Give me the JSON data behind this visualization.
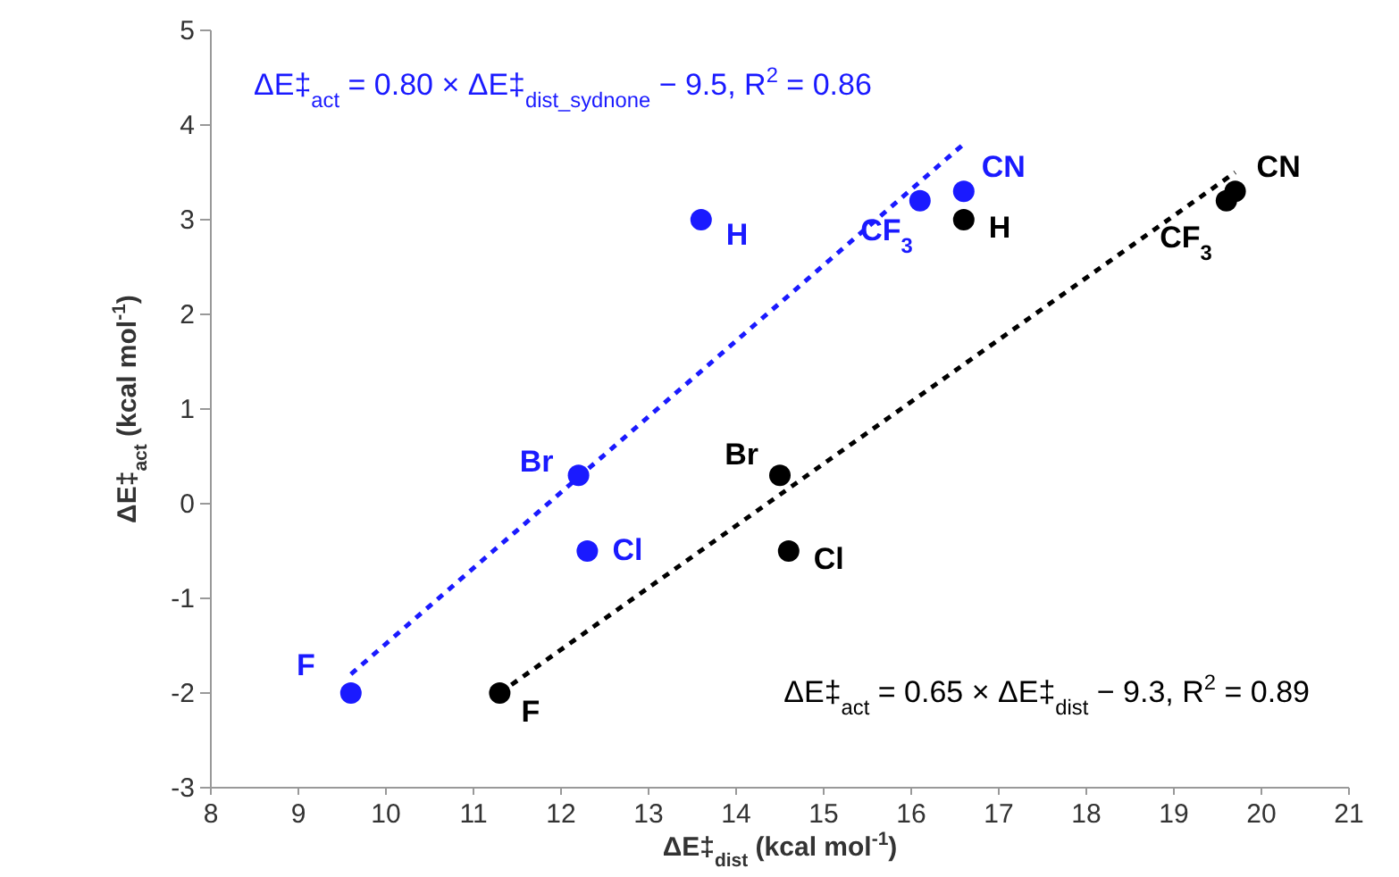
{
  "chart_data": {
    "type": "scatter",
    "xlabel": "ΔE‡$_{dist}$ (kcal mol$^{-1}$)",
    "ylabel": "ΔE‡$_{act}$ (kcal mol$^{-1}$)",
    "xlim": [
      8,
      21
    ],
    "xticks": [
      8,
      9,
      10,
      11,
      12,
      13,
      14,
      15,
      16,
      17,
      18,
      19,
      20,
      21
    ],
    "ylim": [
      -3,
      5
    ],
    "yticks": [
      -3,
      -2,
      -1,
      0,
      1,
      2,
      3,
      4,
      5
    ],
    "grid": false,
    "series": [
      {
        "color": "#1a1aff",
        "marker": "circle",
        "x": [
          9.6,
          12.2,
          12.3,
          13.6,
          16.1,
          16.6
        ],
        "values": [
          -2,
          0.3,
          -0.5,
          3.0,
          3.2,
          3.3
        ]
      },
      {
        "color": "#000000",
        "marker": "circle",
        "x": [
          11.3,
          14.5,
          14.6,
          16.6,
          19.6,
          19.7
        ],
        "values": [
          -2,
          0.3,
          -0.5,
          3.0,
          3.2,
          3.3
        ]
      },
      {
        "type": "line",
        "color": "#1a1aff",
        "line_style": "dotted",
        "x": [
          9.6,
          16.6
        ],
        "values": [
          -1.8,
          3.8
        ]
      },
      {
        "type": "line",
        "color": "#000000",
        "line_style": "dotted",
        "x": [
          11.3,
          19.7
        ],
        "values": [
          -2.0,
          3.5
        ]
      }
    ],
    "annotations": [
      "ΔE‡$_{act}$ = 0.80 × ΔE‡$_{dist_sydnone}$ − 9.5, R$^{2}$ = 0.86",
      "ΔE‡$_{act}$ = 0.65 × ΔE‡$_{dist}$ − 9.3, R$^{2}$ = 0.89",
      {
        "text": "F",
        "x": 9.6,
        "y": -2
      },
      {
        "text": "Br",
        "x": 12.2,
        "y": 0.3
      },
      {
        "text": "Cl",
        "x": 12.3,
        "y": -0.5
      },
      {
        "text": "H",
        "x": 13.6,
        "y": 3.0
      },
      {
        "text": "CF$_{3}$",
        "x": 16.1,
        "y": 3.2
      },
      {
        "text": "CN",
        "x": 16.6,
        "y": 3.3
      },
      {
        "text": "F",
        "x": 11.3,
        "y": -2
      },
      {
        "text": "Br",
        "x": 14.5,
        "y": 0.3
      },
      {
        "text": "Cl",
        "x": 14.6,
        "y": -0.5
      },
      {
        "text": "H",
        "x": 16.6,
        "y": 3.0
      },
      {
        "text": "CF$_{3}$",
        "x": 19.6,
        "y": 3.2
      },
      {
        "text": "CN",
        "x": 19.7,
        "y": 3.3
      }
    ]
  }
}
